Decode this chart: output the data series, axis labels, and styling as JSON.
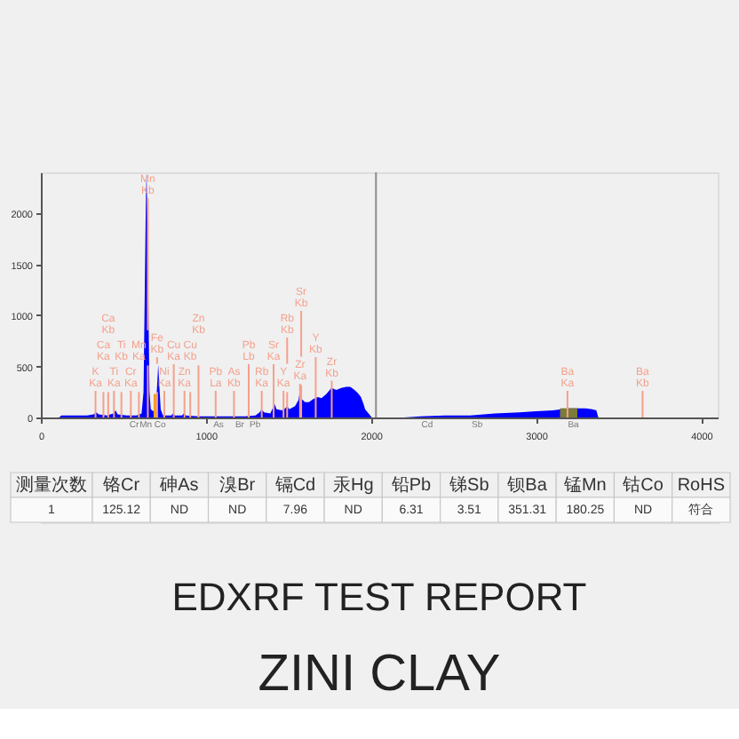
{
  "chart_data": [
    {
      "type": "area",
      "xlim": [
        0,
        4100
      ],
      "ylim": [
        0,
        2400
      ],
      "xticks": [
        0,
        1000,
        2000,
        3000,
        4000
      ],
      "yticks": [
        0,
        500,
        1000,
        1500,
        2000
      ],
      "series": [
        {
          "color": "#0000ff",
          "x": [
            110,
            125,
            200,
            280,
            320,
            336,
            350,
            400,
            440,
            452,
            465,
            520,
            580,
            610,
            622,
            630,
            636,
            640,
            644,
            650,
            658,
            666,
            680,
            695,
            704,
            711,
            718,
            726,
            740,
            790,
            801,
            812,
            855,
            866,
            878,
            950,
            1100,
            1240,
            1300,
            1325,
            1338,
            1352,
            1390,
            1404,
            1416,
            1428,
            1460,
            1480,
            1492,
            1505,
            1540,
            1560,
            1570,
            1580,
            1600,
            1624,
            1650,
            1678,
            1700,
            1730,
            1760,
            1790,
            1820,
            1850,
            1874,
            1900,
            1920,
            1939,
            1955,
            1964,
            1985,
            2005,
            2150,
            2200,
            2300,
            2450,
            2600,
            2750,
            2900,
            3000,
            3100,
            3200,
            3225,
            3260,
            3300,
            3340,
            3365,
            3377
          ],
          "values": [
            0,
            20,
            20,
            20,
            30,
            50,
            30,
            20,
            40,
            70,
            30,
            20,
            20,
            40,
            250,
            1300,
            2100,
            2390,
            2100,
            1300,
            250,
            80,
            60,
            90,
            300,
            520,
            300,
            80,
            20,
            20,
            40,
            20,
            20,
            40,
            20,
            10,
            10,
            10,
            20,
            50,
            80,
            50,
            40,
            90,
            130,
            80,
            70,
            90,
            110,
            80,
            110,
            170,
            260,
            180,
            150,
            150,
            180,
            200,
            190,
            230,
            290,
            270,
            290,
            300,
            300,
            270,
            240,
            200,
            130,
            80,
            40,
            0,
            0,
            0,
            10,
            20,
            20,
            40,
            50,
            60,
            70,
            90,
            90,
            90,
            90,
            80,
            70,
            0
          ]
        },
        {
          "color": "#f0a020",
          "x": [
            683,
            701
          ],
          "values": [
            230,
            230
          ]
        },
        {
          "color": "#7d7a3a",
          "x": [
            3145,
            3250
          ],
          "values": [
            90,
            90
          ]
        }
      ],
      "ref_lines": [
        {
          "axis": "x",
          "value": 2030,
          "color": "#8c8c8c"
        },
        {
          "axis": "x",
          "value": 331,
          "label": "K Ka",
          "color": "#f4a08c"
        },
        {
          "axis": "x",
          "value": 379,
          "label": "Ca Ka",
          "color": "#f4a08c"
        },
        {
          "axis": "x",
          "value": 408,
          "label": "Ca Kb",
          "color": "#f4a08c"
        },
        {
          "axis": "x",
          "value": 443,
          "label": "Ti Ka",
          "color": "#f4a08c"
        },
        {
          "axis": "x",
          "value": 488,
          "label": "Ti Kb",
          "color": "#f4a08c"
        },
        {
          "axis": "x",
          "value": 545,
          "label": "Cr Ka",
          "color": "#f4a08c"
        },
        {
          "axis": "x",
          "value": 594,
          "label": "Mn Ka",
          "color": "#f4a08c"
        },
        {
          "axis": "x",
          "value": 648,
          "label": "Mn Kb",
          "color": "#f4a08c"
        },
        {
          "axis": "x",
          "value": 704,
          "label": "Fe Kb",
          "color": "#f4a08c"
        },
        {
          "axis": "x",
          "value": 748,
          "label": "Ni Ka",
          "color": "#f4a08c"
        },
        {
          "axis": "x",
          "value": 805,
          "label": "Cu Ka",
          "color": "#f4a08c"
        },
        {
          "axis": "x",
          "value": 870,
          "label": "Zn Ka",
          "color": "#f4a08c"
        },
        {
          "axis": "x",
          "value": 905,
          "label": "Cu Kb",
          "color": "#f4a08c"
        },
        {
          "axis": "x",
          "value": 955,
          "label": "Zn Kb",
          "color": "#f4a08c"
        },
        {
          "axis": "x",
          "value": 1059,
          "label": "Pb La",
          "color": "#f4a08c"
        },
        {
          "axis": "x",
          "value": 1170,
          "label": "As Kb",
          "color": "#f4a08c"
        },
        {
          "axis": "x",
          "value": 1259,
          "label": "Pb Lb",
          "color": "#f4a08c"
        },
        {
          "axis": "x",
          "value": 1338,
          "label": "Rb Ka",
          "color": "#f4a08c"
        },
        {
          "axis": "x",
          "value": 1410,
          "label": "Sr Ka",
          "color": "#f4a08c"
        },
        {
          "axis": "x",
          "value": 1470,
          "label": "Y Ka",
          "color": "#f4a08c"
        },
        {
          "axis": "x",
          "value": 1492,
          "label": "Rb Kb",
          "color": "#f4a08c"
        },
        {
          "axis": "x",
          "value": 1570,
          "label": "Zr Ka",
          "color": "#f4a08c"
        },
        {
          "axis": "x",
          "value": 1577,
          "label": "Sr Kb",
          "color": "#f4a08c"
        },
        {
          "axis": "x",
          "value": 1665,
          "label": "Y Kb",
          "color": "#f4a08c"
        },
        {
          "axis": "x",
          "value": 1762,
          "label": "Zr Kb",
          "color": "#f4a08c"
        },
        {
          "axis": "x",
          "value": 3190,
          "label": "Ba Ka",
          "color": "#f4a08c"
        },
        {
          "axis": "x",
          "value": 3645,
          "label": "Ba Kb",
          "color": "#f4a08c"
        }
      ],
      "annotations": [
        {
          "text": "Cr",
          "x": 565,
          "y": 0
        },
        {
          "text": "Mn",
          "x": 636,
          "y": 0
        },
        {
          "text": "Co",
          "x": 722,
          "y": 0
        },
        {
          "text": "As",
          "x": 1076,
          "y": 0
        },
        {
          "text": "Br",
          "x": 1205,
          "y": 0
        },
        {
          "text": "Pb",
          "x": 1298,
          "y": 0
        },
        {
          "text": "Cd",
          "x": 2340,
          "y": 0
        },
        {
          "text": "Sb",
          "x": 2643,
          "y": 0
        },
        {
          "text": "Ba",
          "x": 3226,
          "y": 0
        }
      ]
    },
    {
      "type": "other",
      "categories": [
        "测量次数",
        "铬Cr",
        "砷As",
        "溴Br",
        "镉Cd",
        "汞Hg",
        "铅Pb",
        "锑Sb",
        "钡Ba",
        "锰Mn",
        "钴Co",
        "RoHS"
      ],
      "value_labels": [
        "1",
        "125.12",
        "ND",
        "ND",
        "7.96",
        "ND",
        "6.31",
        "3.51",
        "351.31",
        "180.25",
        "ND",
        "符合"
      ],
      "title": "EDXRF TEST REPORT",
      "subtitle": "ZINI CLAY"
    }
  ]
}
